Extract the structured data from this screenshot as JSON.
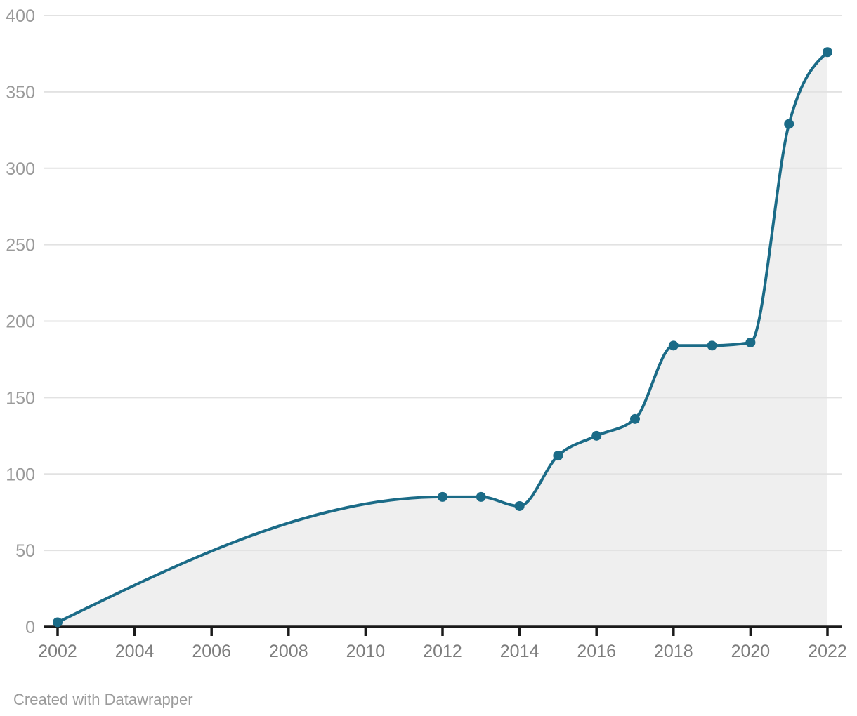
{
  "chart_data": {
    "type": "area",
    "title": "",
    "xlabel": "",
    "ylabel": "",
    "x": [
      2002,
      2012,
      2013,
      2014,
      2015,
      2016,
      2017,
      2018,
      2019,
      2020,
      2021,
      2022
    ],
    "values": [
      3,
      85,
      85,
      79,
      112,
      125,
      136,
      184,
      184,
      186,
      329,
      376
    ],
    "xlim": [
      2002,
      2022
    ],
    "ylim": [
      0,
      400
    ],
    "x_ticks": [
      2002,
      2004,
      2006,
      2008,
      2010,
      2012,
      2014,
      2016,
      2018,
      2020,
      2022
    ],
    "y_ticks": [
      0,
      50,
      100,
      150,
      200,
      250,
      300,
      350,
      400
    ],
    "grid": "horizontal",
    "legend_position": "none",
    "curve": "monotone-x",
    "markers": true,
    "colors": {
      "line": "#1b6b87",
      "marker": "#1b6b87",
      "area_fill": "#efefef",
      "gridline": "#e2e2e2",
      "axis": "#1a1a1a",
      "y_tick_label": "#9a9a9a",
      "x_tick_label": "#7d7d7d"
    }
  },
  "footer": {
    "credit": "Created with Datawrapper"
  }
}
